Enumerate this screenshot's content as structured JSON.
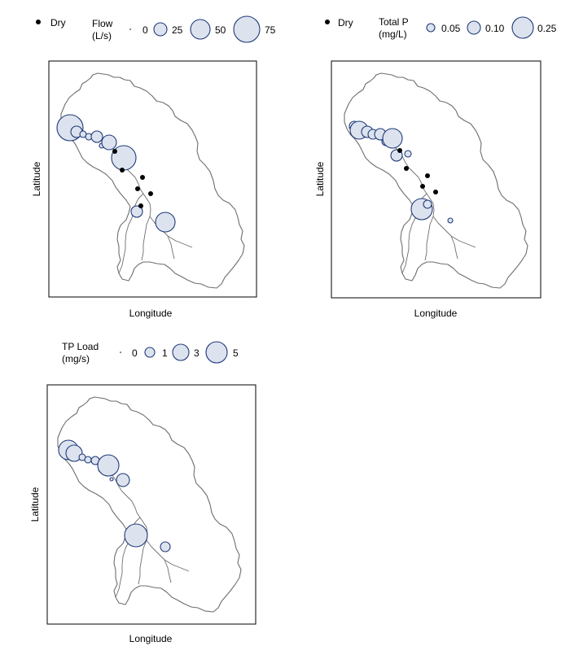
{
  "panels": {
    "flow": {
      "legend_title_line1": "Flow",
      "legend_title_line2": "(L/s)",
      "dry_label": "Dry",
      "xlabel": "Longitude",
      "ylabel": "Latitude",
      "legend_sizes": [
        {
          "label": "0",
          "value": 0
        },
        {
          "label": "25",
          "value": 25
        },
        {
          "label": "50",
          "value": 50
        },
        {
          "label": "75",
          "value": 75
        }
      ]
    },
    "tp": {
      "legend_title_line1": "Total P",
      "legend_title_line2": "(mg/L)",
      "dry_label": "Dry",
      "xlabel": "Longitude",
      "ylabel": "Latitude",
      "legend_sizes": [
        {
          "label": "0.05",
          "value": 0.05
        },
        {
          "label": "0.10",
          "value": 0.1
        },
        {
          "label": "0.25",
          "value": 0.25
        }
      ]
    },
    "load": {
      "legend_title_line1": "TP Load",
      "legend_title_line2": "(mg/s)",
      "xlabel": "Longitude",
      "ylabel": "Latitude",
      "legend_sizes": [
        {
          "label": "0",
          "value": 0
        },
        {
          "label": "1",
          "value": 1
        },
        {
          "label": "3",
          "value": 3
        },
        {
          "label": "5",
          "value": 5
        }
      ]
    }
  },
  "colors": {
    "bubble_fill": "#dde3ee",
    "bubble_stroke": "#1f3a7a",
    "dry_marker": "#000000",
    "outline": "#6e6e6e"
  },
  "chart_data": [
    {
      "type": "scatter",
      "variable": "Flow (L/s)",
      "sites": [
        {
          "site": 1,
          "value": 75
        },
        {
          "site": 2,
          "value": 8
        },
        {
          "site": 3,
          "value": 5
        },
        {
          "site": 4,
          "value": 5
        },
        {
          "site": 5,
          "value": 14
        },
        {
          "site": 6,
          "value": 2
        },
        {
          "site": 7,
          "value": 20
        },
        {
          "site": 8,
          "value": 60
        },
        {
          "site": 9,
          "value": 10
        },
        {
          "site": 10,
          "value": 40
        }
      ],
      "dry_sites": [
        1,
        2,
        3,
        4,
        5,
        6
      ]
    },
    {
      "type": "scatter",
      "variable": "Total P (mg/L)",
      "sites": [
        {
          "site": 1,
          "value": 0.05
        },
        {
          "site": 2,
          "value": 0.15
        },
        {
          "site": 3,
          "value": 0.07
        },
        {
          "site": 4,
          "value": 0.06
        },
        {
          "site": 5,
          "value": 0.1
        },
        {
          "site": 6,
          "value": 0.05
        },
        {
          "site": 7,
          "value": 0.22
        },
        {
          "site": 8,
          "value": 0.06
        },
        {
          "site": 9,
          "value": 0.05
        },
        {
          "site": 10,
          "value": 0.12
        },
        {
          "site": 11,
          "value": 0.04
        },
        {
          "site": 12,
          "value": 0.27
        },
        {
          "site": 13,
          "value": 0.06
        },
        {
          "site": 14,
          "value": 0.03
        }
      ],
      "dry_sites": [
        1,
        2,
        3,
        4,
        5
      ]
    },
    {
      "type": "scatter",
      "variable": "TP Load (mg/s)",
      "sites": [
        {
          "site": 1,
          "value": 4
        },
        {
          "site": 2,
          "value": 3
        },
        {
          "site": 3,
          "value": 0.5
        },
        {
          "site": 4,
          "value": 0.3
        },
        {
          "site": 5,
          "value": 0.7
        },
        {
          "site": 6,
          "value": 0.2
        },
        {
          "site": 7,
          "value": 4.2
        },
        {
          "site": 8,
          "value": 0.2
        },
        {
          "site": 9,
          "value": 2
        },
        {
          "site": 10,
          "value": 0.1
        },
        {
          "site": 11,
          "value": 5
        },
        {
          "site": 12,
          "value": 1
        }
      ],
      "dry_sites": []
    }
  ]
}
